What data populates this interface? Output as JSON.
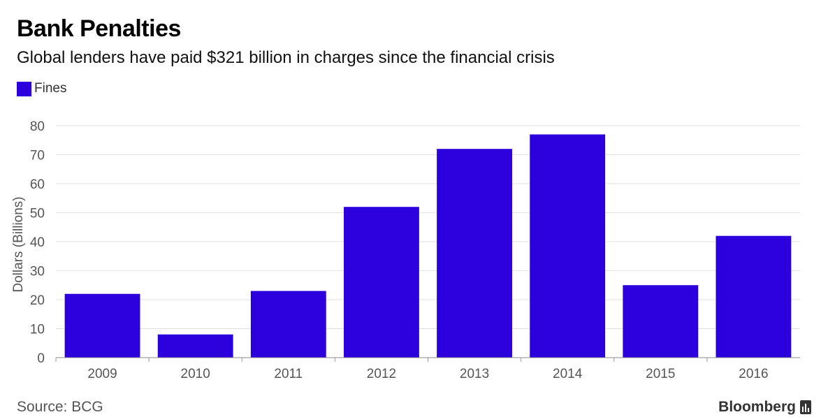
{
  "header": {
    "title": "Bank Penalties",
    "subtitle": "Global lenders have paid $321 billion in charges since the financial crisis"
  },
  "footer": {
    "source": "Source: BCG",
    "brand": "Bloomberg"
  },
  "colors": {
    "bar": "#2b00dd",
    "grid": "#e2e2e2",
    "axis_text": "#555555"
  },
  "chart_data": {
    "type": "bar",
    "title": "Bank Penalties",
    "subtitle": "Global lenders have paid $321 billion in charges since the financial crisis",
    "categories": [
      "2009",
      "2010",
      "2011",
      "2012",
      "2013",
      "2014",
      "2015",
      "2016"
    ],
    "series": [
      {
        "name": "Fines",
        "values": [
          22,
          8,
          23,
          52,
          72,
          77,
          25,
          42
        ]
      }
    ],
    "xlabel": "",
    "ylabel": "Dollars (Billions)",
    "ylim": [
      0,
      80
    ],
    "yticks": [
      0,
      10,
      20,
      30,
      40,
      50,
      60,
      70,
      80
    ],
    "grid": true,
    "legend_position": "top-left"
  }
}
